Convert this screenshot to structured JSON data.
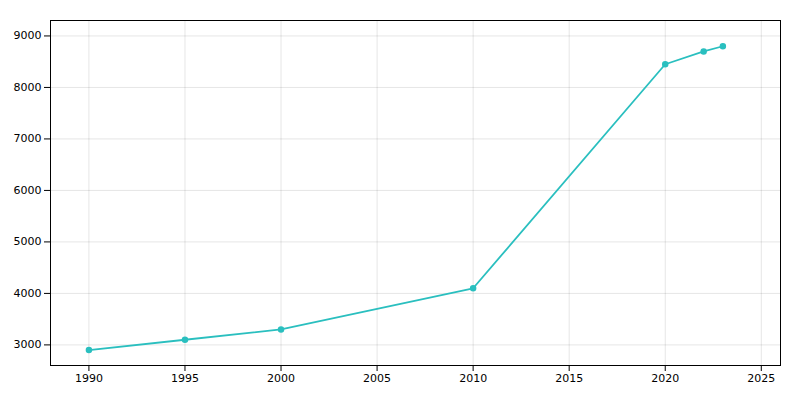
{
  "chart_data": {
    "type": "line",
    "x": [
      1990,
      1995,
      2000,
      2010,
      2020,
      2022,
      2023
    ],
    "values": [
      2900,
      3100,
      3300,
      4100,
      8450,
      8700,
      8800
    ],
    "color": "#2abfbf",
    "marker": "circle",
    "line_style": "solid",
    "xlim": [
      1988,
      2026
    ],
    "ylim": [
      2600,
      9300
    ],
    "xticks": [
      1990,
      1995,
      2000,
      2005,
      2010,
      2015,
      2020,
      2025
    ],
    "yticks": [
      3000,
      4000,
      5000,
      6000,
      7000,
      8000,
      9000
    ],
    "grid": true
  }
}
